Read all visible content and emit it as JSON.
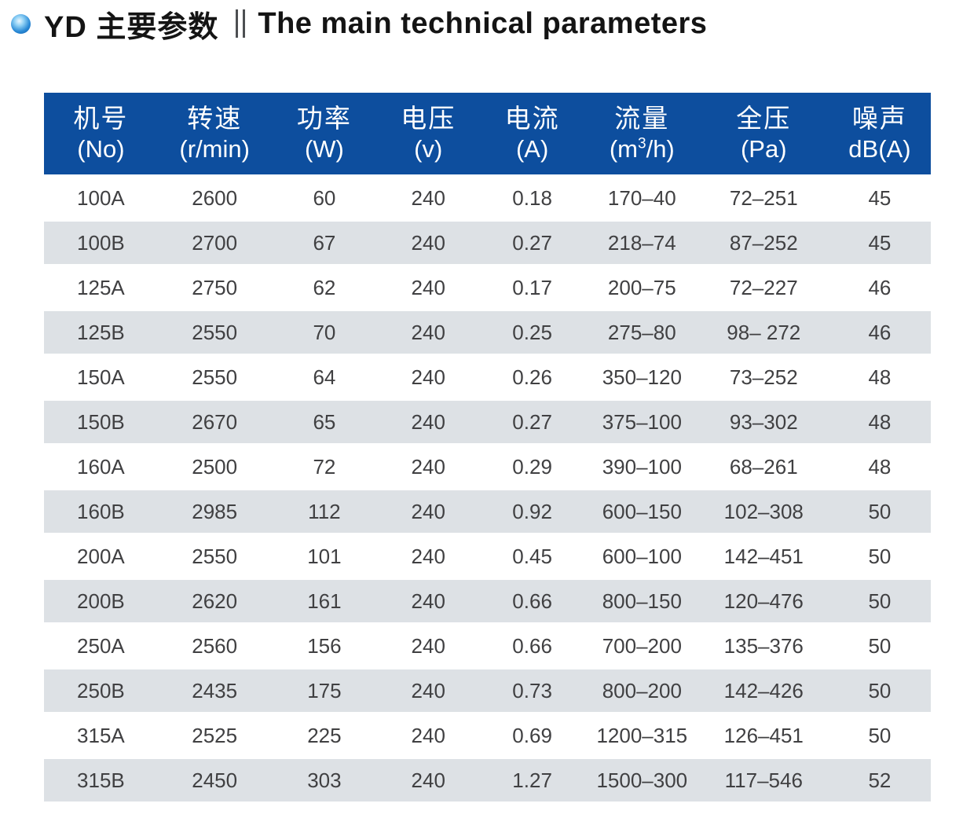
{
  "title": {
    "cn": "YD 主要参数",
    "separator": "‖",
    "en": "The main technical parameters"
  },
  "colors": {
    "header_bg": "#0d4e9e",
    "stripe_bg": "#dde1e5",
    "bullet_blue": "#1577c8",
    "text_dark": "#404042"
  },
  "table": {
    "columns": [
      {
        "key": "no",
        "cn": "机号",
        "unit": "(No)"
      },
      {
        "key": "speed",
        "cn": "转速",
        "unit": "(r/min)"
      },
      {
        "key": "power",
        "cn": "功率",
        "unit": "(W)"
      },
      {
        "key": "voltage",
        "cn": "电压",
        "unit": "(v)"
      },
      {
        "key": "current",
        "cn": "电流",
        "unit": "(A)"
      },
      {
        "key": "flow",
        "cn": "流量",
        "unit_pre": "(m",
        "unit_sup": "3",
        "unit_post": "/h)"
      },
      {
        "key": "pressure",
        "cn": "全压",
        "unit": "(Pa)"
      },
      {
        "key": "noise",
        "cn": "噪声",
        "unit": "dB(A)"
      }
    ],
    "rows": [
      [
        "100A",
        "2600",
        "60",
        "240",
        "0.18",
        "170–40",
        "72–251",
        "45"
      ],
      [
        "100B",
        "2700",
        "67",
        "240",
        "0.27",
        "218–74",
        "87–252",
        "45"
      ],
      [
        "125A",
        "2750",
        "62",
        "240",
        "0.17",
        "200–75",
        "72–227",
        "46"
      ],
      [
        "125B",
        "2550",
        "70",
        "240",
        "0.25",
        "275–80",
        "98– 272",
        "46"
      ],
      [
        "150A",
        "2550",
        "64",
        "240",
        "0.26",
        "350–120",
        "73–252",
        "48"
      ],
      [
        "150B",
        "2670",
        "65",
        "240",
        "0.27",
        "375–100",
        "93–302",
        "48"
      ],
      [
        "160A",
        "2500",
        "72",
        "240",
        "0.29",
        "390–100",
        "68–261",
        "48"
      ],
      [
        "160B",
        "2985",
        "112",
        "240",
        "0.92",
        "600–150",
        "102–308",
        "50"
      ],
      [
        "200A",
        "2550",
        "101",
        "240",
        "0.45",
        "600–100",
        "142–451",
        "50"
      ],
      [
        "200B",
        "2620",
        "161",
        "240",
        "0.66",
        "800–150",
        "120–476",
        "50"
      ],
      [
        "250A",
        "2560",
        "156",
        "240",
        "0.66",
        "700–200",
        "135–376",
        "50"
      ],
      [
        "250B",
        "2435",
        "175",
        "240",
        "0.73",
        "800–200",
        "142–426",
        "50"
      ],
      [
        "315A",
        "2525",
        "225",
        "240",
        "0.69",
        "1200–315",
        "126–451",
        "50"
      ],
      [
        "315B",
        "2450",
        "303",
        "240",
        "1.27",
        "1500–300",
        "117–546",
        "52"
      ]
    ]
  }
}
